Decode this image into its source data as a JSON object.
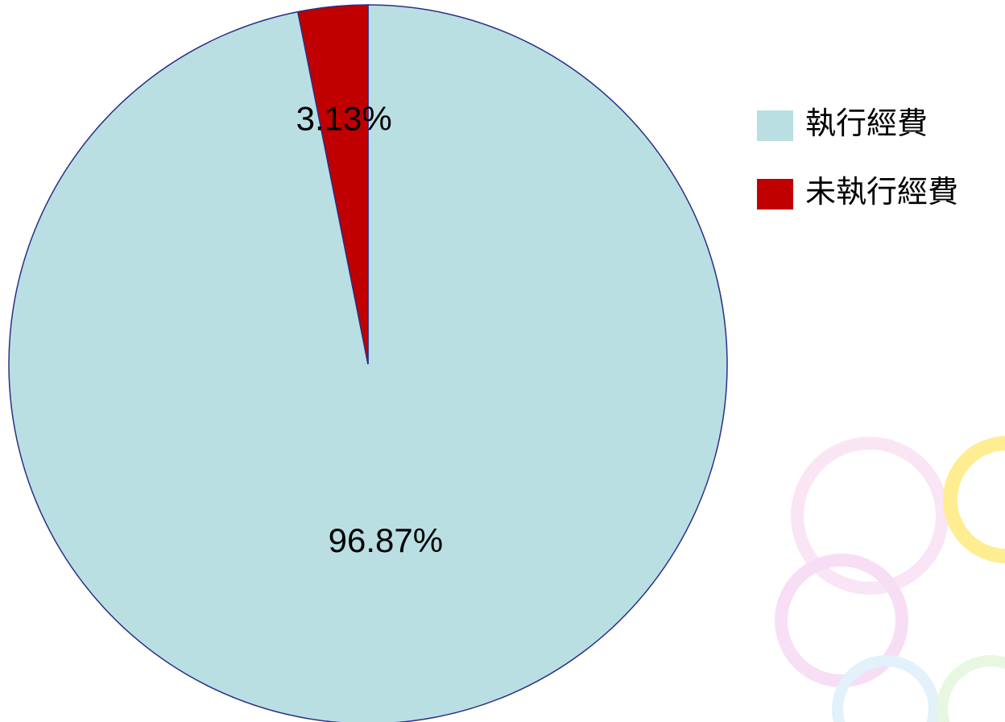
{
  "chart_data": {
    "type": "pie",
    "categories": [
      "執行經費",
      "未執行經費"
    ],
    "values": [
      96.87,
      3.13
    ],
    "value_labels": [
      "96.87%",
      "3.13%"
    ],
    "colors": [
      "#b9dfe3",
      "#c00000"
    ],
    "legend": "right"
  }
}
